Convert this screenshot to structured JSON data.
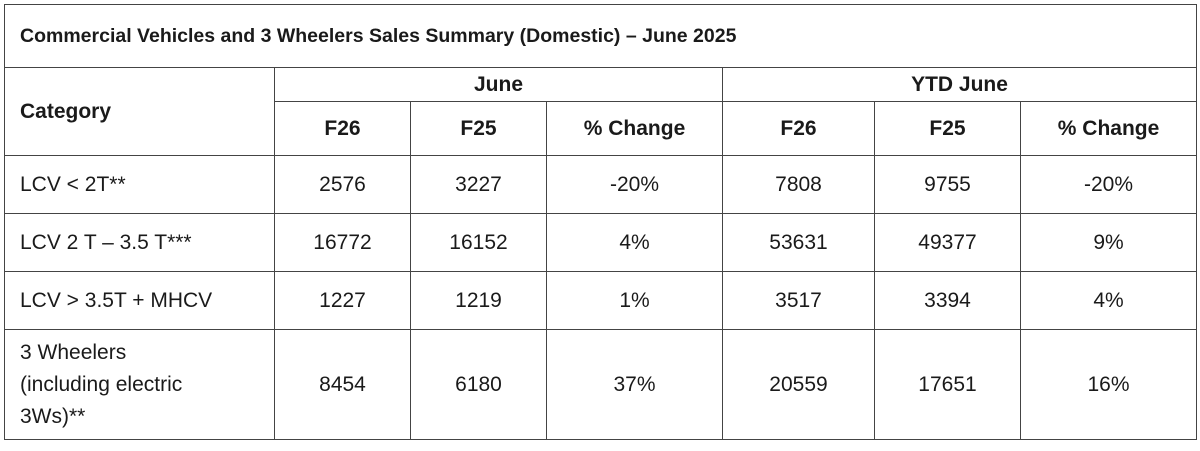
{
  "title": "Commercial Vehicles and 3 Wheelers Sales Summary (Domestic) – June 2025",
  "header": {
    "category": "Category",
    "groups": [
      "June",
      "YTD June"
    ],
    "subheaders": [
      "F26",
      "F25",
      "% Change",
      "F26",
      "F25",
      "% Change"
    ]
  },
  "rows": [
    {
      "category": "LCV < 2T**",
      "values": [
        "2576",
        "3227",
        "-20%",
        "7808",
        "9755",
        "-20%"
      ]
    },
    {
      "category": "LCV 2 T – 3.5 T***",
      "values": [
        "16772",
        "16152",
        "4%",
        "53631",
        "49377",
        "9%"
      ]
    },
    {
      "category": "LCV > 3.5T + MHCV",
      "values": [
        "1227",
        "1219",
        "1%",
        "3517",
        "3394",
        "4%"
      ]
    },
    {
      "category": "3 Wheelers (including electric 3Ws)**",
      "category_lines": [
        "3 Wheelers",
        "(including electric",
        "3Ws)**"
      ],
      "values": [
        "8454",
        "6180",
        "37%",
        "20559",
        "17651",
        "16%"
      ]
    }
  ]
}
